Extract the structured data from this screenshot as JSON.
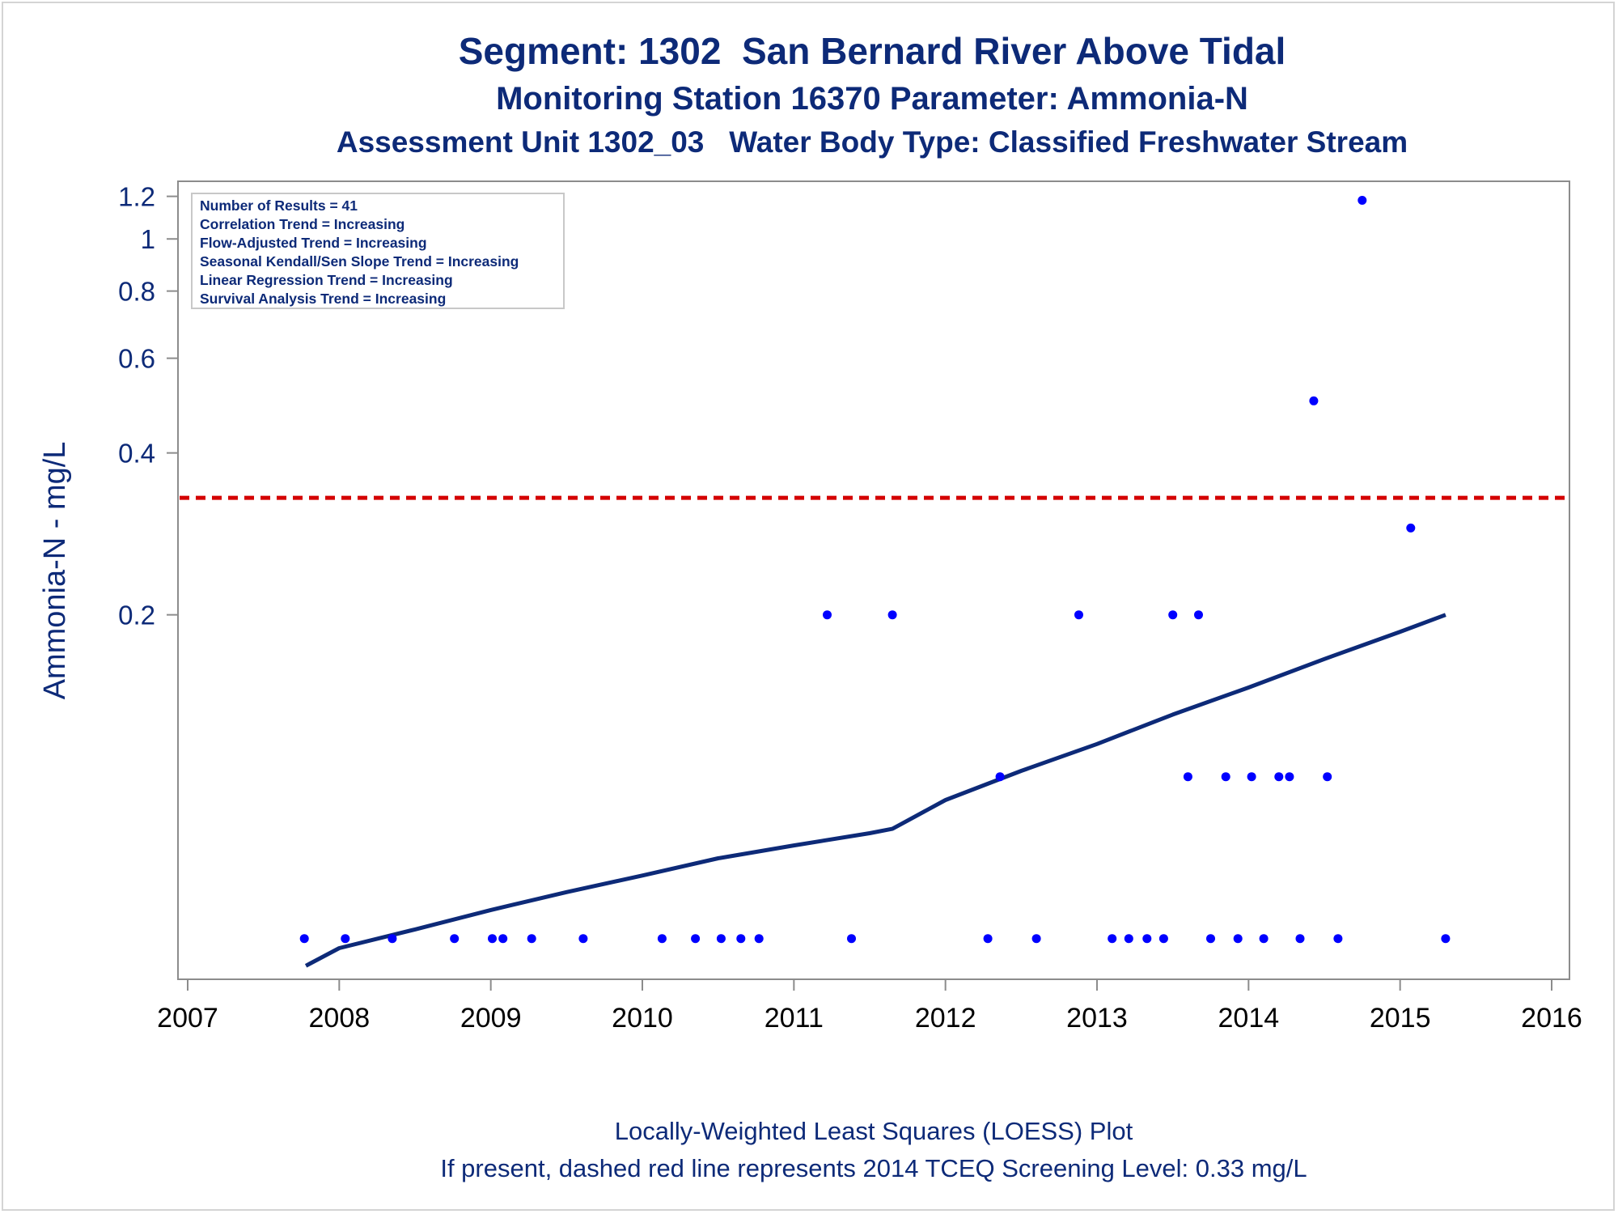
{
  "titles": {
    "line1": "Segment: 1302  San Bernard River Above Tidal",
    "line2": "Monitoring Station 16370 Parameter: Ammonia-N",
    "line3": "Assessment Unit 1302_03   Water Body Type: Classified Freshwater Stream"
  },
  "footnotes": {
    "line1": "Locally-Weighted Least Squares (LOESS) Plot",
    "line2": "If present, dashed red line represents 2014 TCEQ Screening Level: 0.33 mg/L"
  },
  "stats_box": {
    "lines": [
      "Number of Results = 41",
      "Correlation Trend = Increasing",
      "Flow-Adjusted Trend = Increasing",
      "Seasonal Kendall/Sen Slope Trend = Increasing",
      "Linear Regression Trend = Increasing",
      "Survival Analysis Trend = Increasing"
    ]
  },
  "colors": {
    "text": "#0d2a78",
    "points": "#0000ff",
    "loess": "#0d2a78",
    "screening": "#d40000",
    "axis": "#8c8c8c"
  },
  "chart_data": {
    "type": "scatter",
    "ylabel": "Ammonia-N - mg/L",
    "xlabel": "",
    "y_scale": "log",
    "xlim": [
      2007,
      2016
    ],
    "ylim": [
      0.042,
      1.28
    ],
    "x_ticks": [
      "2007",
      "2008",
      "2009",
      "2010",
      "2011",
      "2012",
      "2013",
      "2014",
      "2015",
      "2016"
    ],
    "y_ticks": [
      {
        "label": "0.2",
        "value": 0.2
      },
      {
        "label": "0.4",
        "value": 0.4
      },
      {
        "label": "0.6",
        "value": 0.6
      },
      {
        "label": "0.8",
        "value": 0.8
      },
      {
        "label": "1",
        "value": 1
      },
      {
        "label": "1.2",
        "value": 1.2
      }
    ],
    "screening_level": 0.33,
    "points": [
      [
        2007.77,
        0.05
      ],
      [
        2008.04,
        0.05
      ],
      [
        2008.35,
        0.05
      ],
      [
        2008.76,
        0.05
      ],
      [
        2009.01,
        0.05
      ],
      [
        2009.08,
        0.05
      ],
      [
        2009.27,
        0.05
      ],
      [
        2009.61,
        0.05
      ],
      [
        2010.13,
        0.05
      ],
      [
        2010.35,
        0.05
      ],
      [
        2010.52,
        0.05
      ],
      [
        2010.65,
        0.05
      ],
      [
        2010.77,
        0.05
      ],
      [
        2011.22,
        0.2
      ],
      [
        2011.38,
        0.05
      ],
      [
        2011.65,
        0.2
      ],
      [
        2012.28,
        0.05
      ],
      [
        2012.36,
        0.1
      ],
      [
        2012.6,
        0.05
      ],
      [
        2012.88,
        0.2
      ],
      [
        2013.1,
        0.05
      ],
      [
        2013.21,
        0.05
      ],
      [
        2013.33,
        0.05
      ],
      [
        2013.44,
        0.05
      ],
      [
        2013.5,
        0.2
      ],
      [
        2013.6,
        0.1
      ],
      [
        2013.67,
        0.2
      ],
      [
        2013.75,
        0.05
      ],
      [
        2013.85,
        0.1
      ],
      [
        2013.93,
        0.05
      ],
      [
        2014.02,
        0.1
      ],
      [
        2014.1,
        0.05
      ],
      [
        2014.2,
        0.1
      ],
      [
        2014.27,
        0.1
      ],
      [
        2014.34,
        0.05
      ],
      [
        2014.43,
        0.5
      ],
      [
        2014.52,
        0.1
      ],
      [
        2014.59,
        0.05
      ],
      [
        2014.75,
        1.18
      ],
      [
        2015.07,
        0.29
      ],
      [
        2015.3,
        0.05
      ]
    ],
    "loess": [
      [
        2007.78,
        0.0445
      ],
      [
        2008.0,
        0.048
      ],
      [
        2008.5,
        0.052
      ],
      [
        2009.0,
        0.0565
      ],
      [
        2009.5,
        0.061
      ],
      [
        2010.0,
        0.0655
      ],
      [
        2010.5,
        0.0705
      ],
      [
        2011.0,
        0.0745
      ],
      [
        2011.5,
        0.0785
      ],
      [
        2011.65,
        0.08
      ],
      [
        2012.0,
        0.0905
      ],
      [
        2012.5,
        0.1025
      ],
      [
        2013.0,
        0.115
      ],
      [
        2013.5,
        0.1305
      ],
      [
        2014.0,
        0.1465
      ],
      [
        2014.5,
        0.1655
      ],
      [
        2015.0,
        0.186
      ],
      [
        2015.3,
        0.2
      ]
    ]
  }
}
